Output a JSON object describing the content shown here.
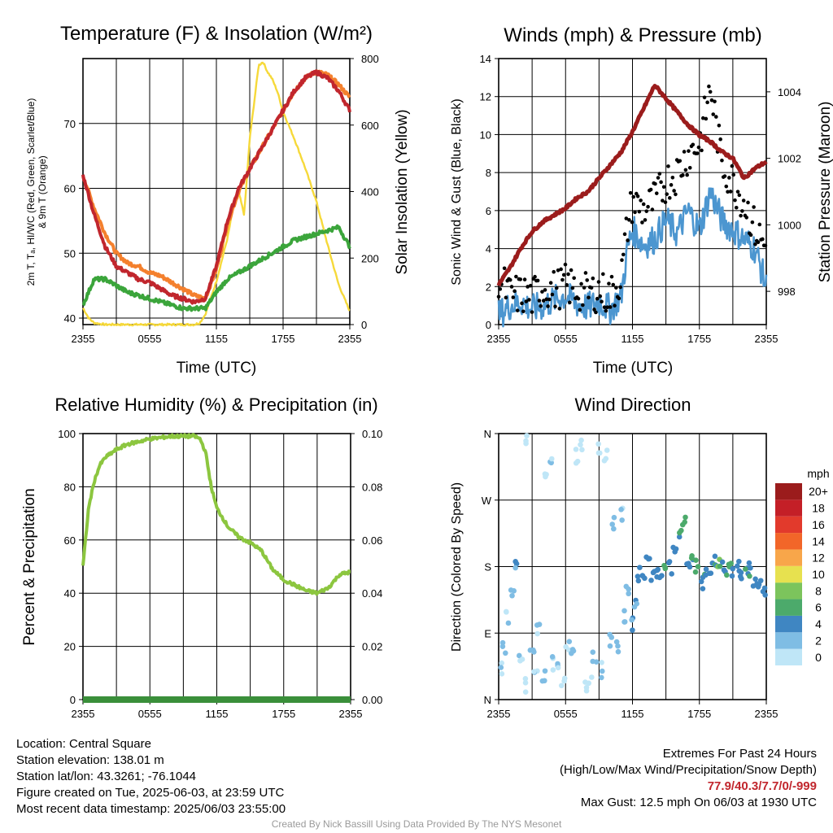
{
  "panels": {
    "temperature": {
      "title": "Temperature (F) & Insolation (W/m²)",
      "ylabel_left_1": "2m T, Tₐ, HI/WC (Red, Green, Scarlet/Blue)",
      "ylabel_left_2": "& 9m T (Orange)",
      "ylabel_right": "Solar Insolation (Yellow)",
      "xlabel": "Time (UTC)"
    },
    "winds": {
      "title": "Winds (mph) & Pressure (mb)",
      "ylabel_left": "Sonic Wind & Gust (Blue, Black)",
      "ylabel_right": "Station Pressure (Maroon)",
      "xlabel": "Time (UTC)"
    },
    "humidity": {
      "title": "Relative Humidity (%) & Precipitation (in)",
      "ylabel_left": "Percent & Precipitation"
    },
    "direction": {
      "title": "Wind Direction",
      "ylabel_left": "Direction (Colored By Speed)",
      "legend_title": "mph"
    }
  },
  "chart_data": [
    {
      "type": "line",
      "title": "Temperature (F) & Insolation (W/m²)",
      "xlabel": "Time (UTC)",
      "x_ticks": [
        "2355",
        "0555",
        "1155",
        "1755",
        "2355"
      ],
      "xlim_hours": [
        0,
        24
      ],
      "ylim": [
        39,
        80
      ],
      "yticks": [
        40,
        50,
        60,
        70
      ],
      "y2lim": [
        0,
        800
      ],
      "y2ticks": [
        0,
        200,
        400,
        600,
        800
      ],
      "series": [
        {
          "name": "2m T (Red)",
          "color": "#c1262d",
          "x": [
            0,
            1,
            2,
            3,
            4,
            5,
            6,
            7,
            8,
            9,
            10,
            11,
            12,
            13,
            14,
            15,
            16,
            17,
            18,
            19,
            20,
            21,
            22,
            23,
            24
          ],
          "values": [
            62,
            56,
            51,
            48,
            47,
            46,
            45.5,
            44.5,
            43.5,
            43,
            42.5,
            43,
            48,
            55,
            60,
            63,
            66,
            69,
            72,
            75,
            77,
            77.9,
            77,
            75,
            72
          ]
        },
        {
          "name": "Dew point Td (Green)",
          "color": "#3ba53b",
          "x": [
            0,
            1,
            2,
            3,
            4,
            5,
            6,
            7,
            8,
            9,
            10,
            11,
            12,
            13,
            14,
            15,
            16,
            17,
            18,
            19,
            20,
            21,
            22,
            23,
            24
          ],
          "values": [
            42,
            46,
            46,
            45,
            44,
            43.5,
            43,
            42.5,
            42,
            41.5,
            41.5,
            41.5,
            44,
            46,
            47,
            48,
            49,
            50,
            51,
            52,
            52.5,
            53,
            53.5,
            54,
            51
          ]
        },
        {
          "name": "9m T (Orange)",
          "color": "#f4802d",
          "x": [
            0,
            1,
            2,
            3,
            4,
            5,
            6,
            7,
            8,
            9,
            10,
            11,
            12,
            13,
            14,
            15,
            16,
            17,
            18,
            19,
            20,
            21,
            22,
            23,
            24
          ],
          "values": [
            62,
            57,
            53,
            50,
            48.5,
            48,
            47,
            46.5,
            45.5,
            44.5,
            43.5,
            43,
            47.5,
            54.5,
            59.5,
            63,
            66,
            69,
            72,
            75,
            77,
            78,
            77.5,
            76,
            74
          ]
        },
        {
          "name": "Solar Insolation (Yellow)",
          "color": "#f6d93a",
          "axis": "right",
          "x": [
            0,
            0.5,
            1,
            2,
            4,
            6,
            8,
            10,
            10.5,
            11,
            12,
            13,
            13.5,
            14,
            14.5,
            15,
            15.3,
            15.8,
            16.2,
            16.6,
            17,
            17.5,
            18,
            19,
            20,
            21,
            22,
            23,
            24
          ],
          "values": [
            50,
            20,
            5,
            0,
            0,
            0,
            0,
            0,
            5,
            30,
            130,
            260,
            350,
            400,
            330,
            560,
            640,
            780,
            790,
            760,
            740,
            700,
            640,
            560,
            470,
            370,
            240,
            120,
            40
          ]
        }
      ]
    },
    {
      "type": "scatter",
      "title": "Winds (mph) & Pressure (mb)",
      "xlabel": "Time (UTC)",
      "x_ticks": [
        "2355",
        "0555",
        "1155",
        "1755",
        "2355"
      ],
      "xlim_hours": [
        0,
        24
      ],
      "ylim": [
        0,
        14
      ],
      "yticks": [
        0,
        2,
        4,
        6,
        8,
        10,
        12,
        14
      ],
      "y2lim": [
        997,
        1005
      ],
      "y2ticks": [
        998,
        1000,
        1002,
        1004
      ],
      "series": [
        {
          "name": "Sonic Wind (Blue)",
          "color": "#4c96d0",
          "x": [
            0,
            1,
            2,
            3,
            4,
            5,
            6,
            7,
            8,
            9,
            10,
            11,
            11.5,
            12,
            13,
            14,
            15,
            16,
            17,
            18,
            19,
            20,
            21,
            22,
            23,
            24
          ],
          "values": [
            0.5,
            1,
            1.2,
            0.8,
            1,
            1.3,
            1.5,
            1.1,
            0.9,
            1.2,
            0.8,
            1.5,
            3.8,
            5,
            4.2,
            4.5,
            5.5,
            4.8,
            6,
            5,
            7,
            5.5,
            5,
            4.5,
            4,
            2
          ]
        },
        {
          "name": "Gust (Black)",
          "color": "#000000",
          "x": [
            0,
            1,
            2,
            3,
            4,
            5,
            6,
            7,
            8,
            9,
            10,
            11,
            11.5,
            12,
            13,
            14,
            15,
            16,
            17,
            18,
            19,
            20,
            21,
            22,
            23,
            24
          ],
          "values": [
            2.5,
            1.5,
            1.6,
            1.4,
            2,
            1.8,
            2.1,
            1.8,
            1.6,
            1.8,
            1.5,
            2.5,
            5,
            6.5,
            6,
            6.5,
            7.5,
            8,
            9,
            9.5,
            12.5,
            8.5,
            7.5,
            6.5,
            5,
            4
          ]
        },
        {
          "name": "Station Pressure (Maroon)",
          "color": "#9b1c1c",
          "axis": "right",
          "x": [
            0,
            1,
            2,
            3,
            4,
            5,
            6,
            7,
            8,
            9,
            10,
            11,
            12,
            13,
            14,
            15,
            16,
            17,
            18,
            19,
            20,
            21,
            22,
            23,
            24
          ],
          "values": [
            998.2,
            998.7,
            999.3,
            999.8,
            1000.1,
            1000.3,
            1000.5,
            1000.8,
            1001,
            1001.4,
            1001.8,
            1002.2,
            1002.8,
            1003.5,
            1004.2,
            1003.8,
            1003.4,
            1003,
            1002.7,
            1002.5,
            1002.2,
            1002,
            1001.4,
            1001.7,
            1001.9
          ]
        }
      ]
    },
    {
      "type": "line",
      "title": "Relative Humidity (%) & Precipitation (in)",
      "x_ticks": [
        "2355",
        "0555",
        "1155",
        "1755",
        "2355"
      ],
      "xlim_hours": [
        0,
        24
      ],
      "ylim": [
        0,
        100
      ],
      "yticks": [
        0,
        20,
        40,
        60,
        80,
        100
      ],
      "y2lim": [
        0,
        0.1
      ],
      "y2ticks": [
        "0.00",
        "0.02",
        "0.04",
        "0.06",
        "0.08",
        "0.10"
      ],
      "series": [
        {
          "name": "Relative Humidity",
          "color": "#8cc63f",
          "x": [
            0,
            0.5,
            1,
            1.5,
            2,
            3,
            4,
            5,
            6,
            7,
            8,
            9,
            10,
            10.5,
            11,
            11.5,
            12,
            13,
            14,
            15,
            16,
            17,
            18,
            19,
            20,
            21,
            22,
            23,
            24
          ],
          "values": [
            50,
            72,
            82,
            88,
            91,
            94,
            96,
            97,
            98,
            98.5,
            99,
            99,
            99,
            98,
            93,
            80,
            72,
            65,
            61,
            59,
            56,
            49,
            45,
            43,
            41,
            40,
            42,
            47,
            48
          ]
        },
        {
          "name": "Precipitation",
          "color": "#3ba53b",
          "axis": "right",
          "x": [
            0,
            24
          ],
          "values": [
            0,
            0
          ]
        }
      ]
    },
    {
      "type": "scatter",
      "title": "Wind Direction",
      "x_ticks": [
        "2355",
        "0555",
        "1155",
        "1755",
        "2355"
      ],
      "xlim_hours": [
        0,
        24
      ],
      "ylim": [
        0,
        360
      ],
      "ytick_labels": [
        "N",
        "E",
        "S",
        "W",
        "N"
      ],
      "colorbar": {
        "labels": [
          "0",
          "2",
          "4",
          "6",
          "8",
          "10",
          "12",
          "14",
          "16",
          "18",
          "20+"
        ],
        "colors": [
          "#bfe6f7",
          "#7fbde4",
          "#3f86c2",
          "#4caa6b",
          "#7cc45c",
          "#e7e14f",
          "#f8a64a",
          "#f26629",
          "#e23a2c",
          "#c41f27",
          "#9b1c1c"
        ]
      },
      "series": [
        {
          "name": "Direction",
          "x": [
            0.2,
            0.5,
            0.8,
            1.2,
            1.5,
            2,
            2.3,
            2.6,
            3,
            3.3,
            3.6,
            4,
            4.3,
            4.7,
            5,
            5.4,
            5.8,
            6.2,
            6.6,
            7,
            7.4,
            7.8,
            8.2,
            8.6,
            9,
            9.3,
            9.6,
            10,
            10.3,
            10.7,
            11,
            11.3,
            11.6,
            12,
            12.3,
            12.6,
            13,
            13.4,
            13.8,
            14.2,
            14.6,
            15,
            15.4,
            15.8,
            16.2,
            16.6,
            17,
            17.4,
            17.8,
            18.2,
            18.6,
            19,
            19.4,
            19.8,
            20.2,
            20.6,
            21,
            21.4,
            21.8,
            22.2,
            22.6,
            23,
            23.4,
            23.8
          ],
          "values": [
            40,
            70,
            110,
            150,
            180,
            60,
            20,
            350,
            70,
            40,
            100,
            30,
            300,
            330,
            50,
            40,
            20,
            70,
            60,
            330,
            340,
            20,
            30,
            60,
            340,
            40,
            330,
            80,
            240,
            70,
            250,
            110,
            150,
            100,
            130,
            170,
            160,
            185,
            165,
            175,
            160,
            185,
            180,
            200,
            225,
            245,
            185,
            190,
            180,
            160,
            170,
            175,
            185,
            190,
            180,
            178,
            175,
            185,
            165,
            170,
            175,
            160,
            150,
            150
          ],
          "speeds": [
            1,
            1,
            1,
            2,
            3,
            1,
            1,
            0,
            2,
            1,
            1,
            2,
            0,
            1,
            1,
            1,
            0,
            1,
            2,
            0,
            0,
            0,
            1,
            2,
            0,
            1,
            0,
            2,
            1,
            2,
            1,
            2,
            2,
            3,
            3,
            4,
            4,
            4,
            3,
            4,
            4,
            5,
            4,
            4,
            5,
            6,
            4,
            5,
            7,
            4,
            5,
            4,
            5,
            7,
            5,
            6,
            5,
            5,
            4,
            5,
            5,
            4,
            4,
            4
          ]
        }
      ]
    }
  ],
  "info": {
    "location": "Location: Central Square",
    "elevation": "Station elevation: 138.01 m",
    "latlon": "Station lat/lon: 43.3261; -76.1044",
    "created": "Figure created on Tue, 2025-06-03, at 23:59 UTC",
    "recent": "Most recent data timestamp: 2025/06/03 23:55:00",
    "extremes_title": "Extremes For Past 24 Hours",
    "extremes_subtitle": "(High/Low/Max Wind/Precipitation/Snow Depth)",
    "extremes_values": "77.9/40.3/7.7/0/-999",
    "max_gust": "Max Gust: 12.5 mph On 06/03 at 1930 UTC"
  },
  "credit": "Created By Nick Bassill Using Data Provided By The NYS Mesonet"
}
